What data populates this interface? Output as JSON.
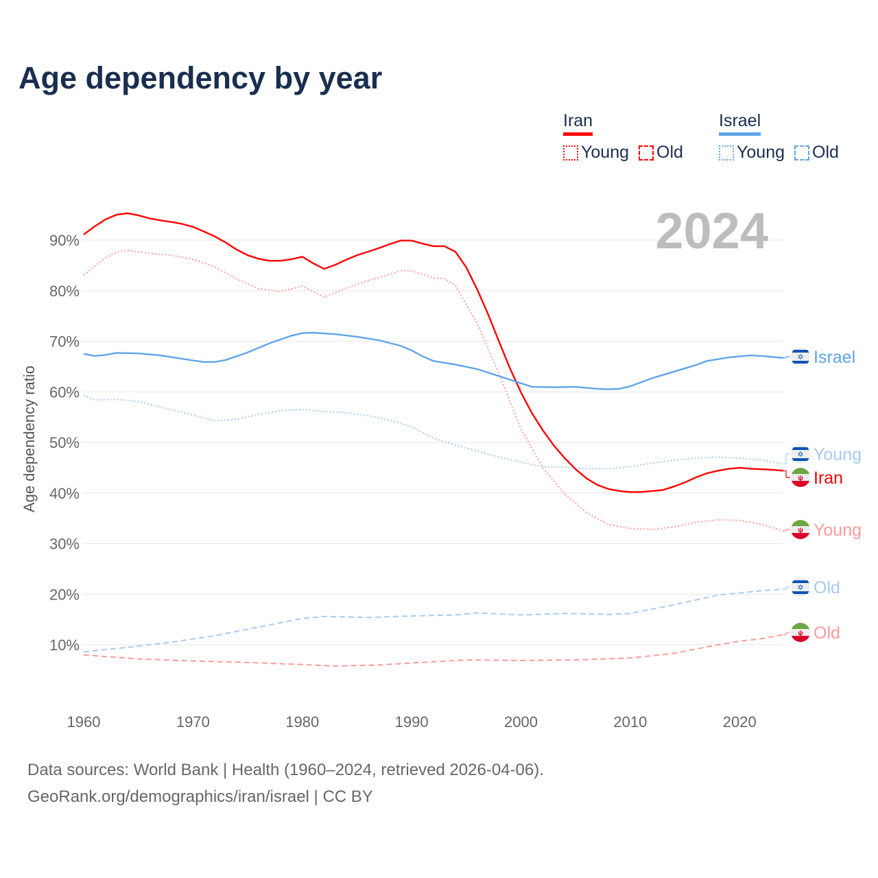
{
  "title": "Age dependency by year",
  "legend": {
    "groups": [
      {
        "name": "Iran",
        "color": "#ff0000",
        "young": "Young",
        "old": "Old"
      },
      {
        "name": "Israel",
        "color": "#5ea5e8",
        "young": "Young",
        "old": "Old"
      }
    ]
  },
  "footer": {
    "line1": "Data sources: World Bank | Health (1960–2024, retrieved 2026-04-06).",
    "line2": "GeoRank.org/demographics/iran/israel | CC BY"
  },
  "chart_data": {
    "type": "line",
    "title": "Age dependency by year",
    "year_watermark": "2024",
    "xlabel": "",
    "ylabel": "Age dependency ratio",
    "xlim": [
      1960,
      2024
    ],
    "ylim": [
      0,
      100
    ],
    "x_ticks": [
      "1960",
      "1970",
      "1980",
      "1990",
      "2000",
      "2010",
      "2020"
    ],
    "y_ticks": [
      "10%",
      "20%",
      "30%",
      "40%",
      "50%",
      "60%",
      "70%",
      "80%",
      "90%"
    ],
    "grid": true,
    "legend_position": "top-right",
    "series": [
      {
        "name": "Iran",
        "label": "Iran",
        "country": "Iran",
        "style": "solid",
        "color": "#ff0000",
        "x": [
          1960,
          1961,
          1962,
          1963,
          1964,
          1965,
          1966,
          1967,
          1968,
          1969,
          1970,
          1971,
          1972,
          1973,
          1974,
          1975,
          1976,
          1977,
          1978,
          1979,
          1980,
          1981,
          1982,
          1983,
          1984,
          1985,
          1986,
          1987,
          1988,
          1989,
          1990,
          1991,
          1992,
          1993,
          1994,
          1995,
          1996,
          1997,
          1998,
          1999,
          2000,
          2001,
          2002,
          2003,
          2004,
          2005,
          2006,
          2007,
          2008,
          2009,
          2010,
          2011,
          2012,
          2013,
          2014,
          2015,
          2016,
          2017,
          2018,
          2019,
          2020,
          2021,
          2022,
          2023,
          2024
        ],
        "y": [
          91.1,
          92.7,
          94.1,
          95.0,
          95.3,
          94.9,
          94.3,
          93.9,
          93.6,
          93.2,
          92.6,
          91.7,
          90.7,
          89.5,
          88.1,
          87.0,
          86.3,
          85.9,
          85.9,
          86.2,
          86.7,
          85.4,
          84.3,
          85.1,
          86.1,
          87.0,
          87.7,
          88.4,
          89.2,
          89.9,
          89.9,
          89.3,
          88.8,
          88.8,
          87.7,
          84.6,
          80.2,
          75.3,
          69.9,
          64.6,
          59.9,
          55.8,
          52.4,
          49.4,
          46.9,
          44.7,
          42.9,
          41.6,
          40.8,
          40.4,
          40.2,
          40.2,
          40.4,
          40.6,
          41.3,
          42.1,
          43.1,
          43.9,
          44.4,
          44.8,
          45.0,
          44.8,
          44.7,
          44.6,
          44.4
        ]
      },
      {
        "name": "Iran Young",
        "label": "Young",
        "country": "Iran",
        "style": "dotted",
        "color": "#ff9a9a",
        "x": [
          1960,
          1962,
          1963,
          1964,
          1966,
          1968,
          1970,
          1972,
          1974,
          1976,
          1978,
          1980,
          1982,
          1984,
          1986,
          1988,
          1989,
          1990,
          1992,
          1993,
          1994,
          1996,
          1998,
          2000,
          2002,
          2004,
          2006,
          2008,
          2010,
          2012,
          2014,
          2016,
          2018,
          2020,
          2022,
          2024
        ],
        "y": [
          83.1,
          86.5,
          87.6,
          88.0,
          87.4,
          87.0,
          86.2,
          84.7,
          82.3,
          80.4,
          79.8,
          80.9,
          78.7,
          80.5,
          82.0,
          83.2,
          84.0,
          83.9,
          82.5,
          82.4,
          81.0,
          73.5,
          63.5,
          52.6,
          45.0,
          39.8,
          36.1,
          33.8,
          33.0,
          32.8,
          33.3,
          34.2,
          34.7,
          34.6,
          33.8,
          32.5
        ]
      },
      {
        "name": "Iran Old",
        "label": "Old",
        "country": "Iran",
        "style": "dashed",
        "color": "#ff9a9a",
        "x": [
          1960,
          1965,
          1970,
          1975,
          1980,
          1983,
          1987,
          1990,
          1995,
          2000,
          2005,
          2010,
          2014,
          2018,
          2020,
          2022,
          2024
        ],
        "y": [
          8.0,
          7.2,
          6.8,
          6.5,
          6.1,
          5.8,
          6.0,
          6.4,
          7.0,
          6.9,
          7.0,
          7.4,
          8.3,
          10.0,
          10.7,
          11.2,
          12.0
        ]
      },
      {
        "name": "Israel",
        "label": "Israel",
        "country": "Israel",
        "style": "solid",
        "color": "#5ea5e8",
        "x": [
          1960,
          1961,
          1962,
          1963,
          1965,
          1967,
          1970,
          1971,
          1972,
          1973,
          1975,
          1977,
          1979,
          1980,
          1981,
          1983,
          1985,
          1987,
          1989,
          1990,
          1991,
          1992,
          1994,
          1996,
          1998,
          2000,
          2001,
          2003,
          2005,
          2007,
          2008,
          2009,
          2010,
          2011,
          2012,
          2014,
          2016,
          2017,
          2019,
          2021,
          2022,
          2024
        ],
        "y": [
          67.5,
          67.1,
          67.3,
          67.7,
          67.6,
          67.2,
          66.2,
          65.9,
          65.9,
          66.3,
          67.8,
          69.6,
          71.1,
          71.6,
          71.7,
          71.4,
          70.9,
          70.2,
          69.1,
          68.2,
          67.0,
          66.1,
          65.4,
          64.5,
          63.1,
          61.7,
          61.0,
          60.9,
          61.0,
          60.6,
          60.5,
          60.6,
          61.1,
          61.9,
          62.7,
          64.0,
          65.3,
          66.1,
          66.8,
          67.2,
          67.1,
          66.7
        ]
      },
      {
        "name": "Israel Young",
        "label": "Young",
        "country": "Israel",
        "style": "dotted",
        "color": "#a6cbf0",
        "x": [
          1960,
          1961,
          1963,
          1965,
          1967,
          1969,
          1971,
          1972,
          1974,
          1976,
          1978,
          1980,
          1982,
          1984,
          1986,
          1988,
          1990,
          1992,
          1994,
          1996,
          1998,
          2000,
          2002,
          2004,
          2006,
          2008,
          2010,
          2012,
          2014,
          2016,
          2018,
          2020,
          2022,
          2024
        ],
        "y": [
          59.3,
          58.4,
          58.5,
          58.1,
          57.0,
          56.0,
          54.8,
          54.3,
          54.6,
          55.5,
          56.3,
          56.5,
          56.1,
          55.9,
          55.3,
          54.4,
          53.1,
          50.8,
          49.5,
          48.3,
          47.1,
          46.1,
          45.2,
          45.1,
          44.8,
          44.8,
          45.2,
          45.9,
          46.5,
          46.9,
          47.1,
          46.9,
          46.5,
          45.8
        ]
      },
      {
        "name": "Israel Old",
        "label": "Old",
        "country": "Israel",
        "style": "dashed",
        "color": "#a6cbf0",
        "x": [
          1960,
          1964,
          1968,
          1972,
          1976,
          1980,
          1982,
          1986,
          1990,
          1994,
          1996,
          2000,
          2004,
          2006,
          2008,
          2010,
          2014,
          2018,
          2022,
          2024
        ],
        "y": [
          8.6,
          9.5,
          10.5,
          11.8,
          13.5,
          15.2,
          15.6,
          15.4,
          15.7,
          15.9,
          16.3,
          15.9,
          16.2,
          16.1,
          16.0,
          16.2,
          17.9,
          19.8,
          20.7,
          21.0
        ]
      }
    ]
  }
}
